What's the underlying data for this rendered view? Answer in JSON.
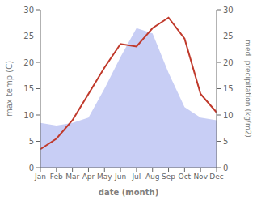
{
  "chart_data": {
    "type": "line",
    "xlabel": "date (month)",
    "ylabel": "max temp (C)",
    "y2label": "med. precipitation (kg/m2)",
    "categories": [
      "Jan",
      "Feb",
      "Mar",
      "Apr",
      "May",
      "Jun",
      "Jul",
      "Aug",
      "Sep",
      "Oct",
      "Nov",
      "Dec"
    ],
    "series": [
      {
        "type": "area",
        "axis": "y2",
        "color": "#c8cef5",
        "values": [
          8.5,
          8.0,
          8.5,
          9.5,
          15.0,
          21.0,
          26.5,
          25.5,
          18.0,
          11.5,
          9.5,
          9.0
        ]
      },
      {
        "type": "line",
        "color": "#c0392b",
        "values": [
          3.5,
          5.5,
          9.0,
          14.0,
          19.0,
          23.5,
          23.0,
          26.5,
          28.5,
          24.5,
          14.0,
          10.5
        ]
      }
    ],
    "ylim": [
      0,
      30
    ],
    "yticks": [
      0,
      5,
      10,
      15,
      20,
      25,
      30
    ],
    "y2lim": [
      0,
      30
    ],
    "y2ticks": [
      0,
      5,
      10,
      15,
      20,
      25,
      30
    ],
    "grid": false
  }
}
